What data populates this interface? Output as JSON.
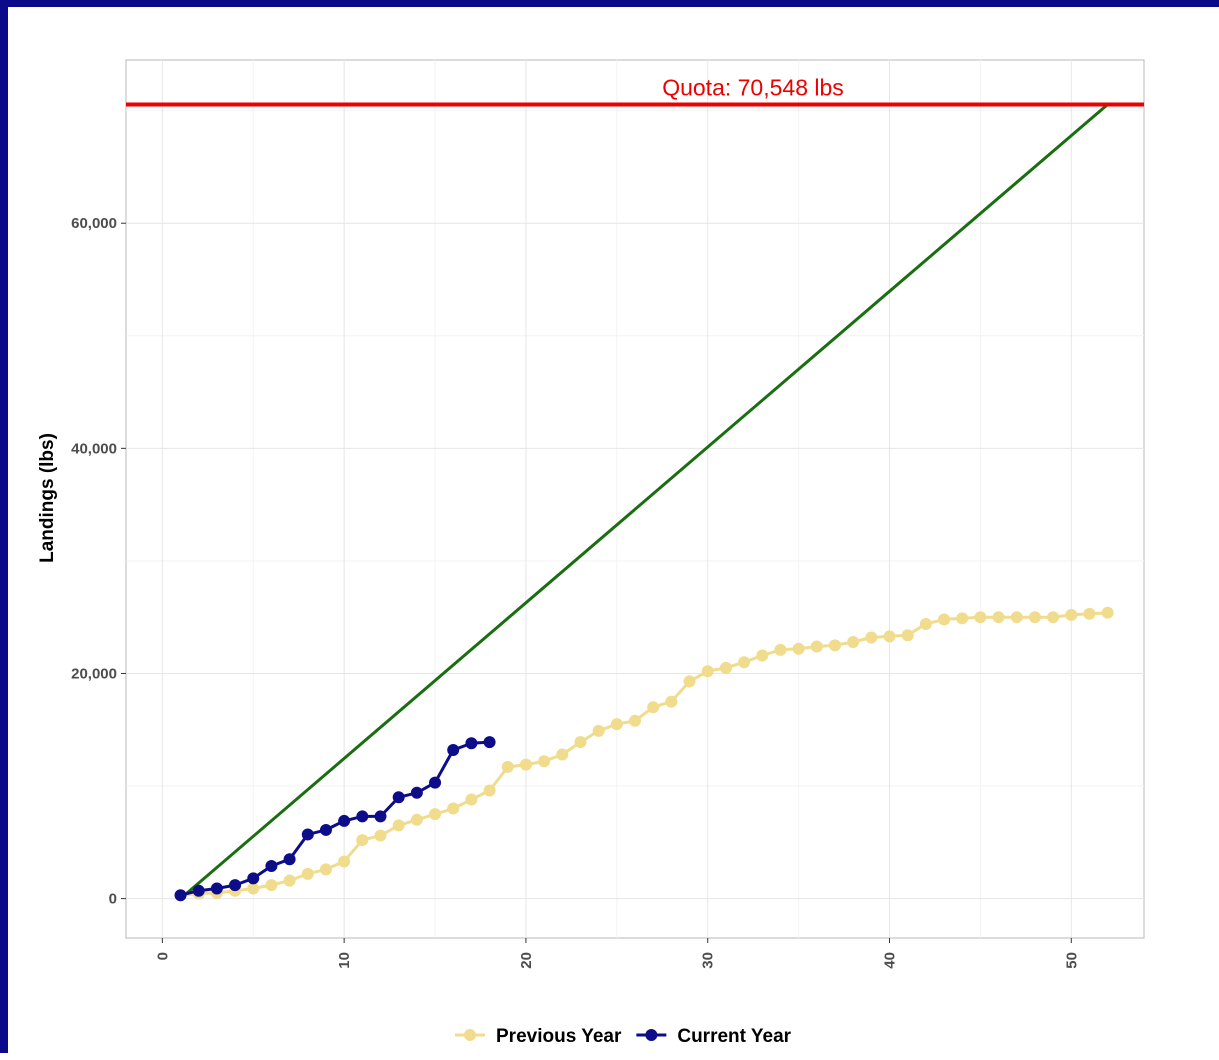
{
  "chart_data": {
    "type": "line",
    "title": "",
    "xlabel": "",
    "ylabel": "Landings (lbs)",
    "xlim": [
      -2,
      54
    ],
    "ylim": [
      -3500,
      74500
    ],
    "x_ticks": [
      0,
      10,
      20,
      30,
      40,
      50
    ],
    "x_tick_labels": [
      "0",
      "10",
      "20",
      "30",
      "40",
      "50"
    ],
    "y_ticks": [
      0,
      20000,
      40000,
      60000
    ],
    "y_tick_labels": [
      "0",
      "20,000",
      "40,000",
      "60,000"
    ],
    "grid": true,
    "legend_position": "bottom",
    "quota": {
      "value": 70548,
      "label": "Quota: 70,548 lbs",
      "color": "#ee0000"
    },
    "target_line": {
      "x": [
        1,
        52
      ],
      "y": [
        0,
        70548
      ],
      "color": "#1a6e12"
    },
    "series": [
      {
        "name": "Previous Year",
        "color": "#f0dc8c",
        "x": [
          1,
          2,
          3,
          4,
          5,
          6,
          7,
          8,
          9,
          10,
          11,
          12,
          13,
          14,
          15,
          16,
          17,
          18,
          19,
          20,
          21,
          22,
          23,
          24,
          25,
          26,
          27,
          28,
          29,
          30,
          31,
          32,
          33,
          34,
          35,
          36,
          37,
          38,
          39,
          40,
          41,
          42,
          43,
          44,
          45,
          46,
          47,
          48,
          49,
          50,
          51,
          52
        ],
        "values": [
          300,
          450,
          500,
          700,
          900,
          1200,
          1600,
          2200,
          2600,
          3300,
          5200,
          5600,
          6500,
          7000,
          7500,
          8000,
          8800,
          9600,
          11700,
          11900,
          12200,
          12800,
          13900,
          14900,
          15500,
          15800,
          17000,
          17500,
          19300,
          20200,
          20500,
          21000,
          21600,
          22100,
          22200,
          22400,
          22500,
          22800,
          23200,
          23300,
          23400,
          24400,
          24800,
          24900,
          25000,
          25000,
          25000,
          25000,
          25000,
          25200,
          25300,
          25400
        ]
      },
      {
        "name": "Current Year",
        "color": "#0d0d8a",
        "x": [
          1,
          2,
          3,
          4,
          5,
          6,
          7,
          8,
          9,
          10,
          11,
          12,
          13,
          14,
          15,
          16,
          17,
          18
        ],
        "values": [
          300,
          700,
          900,
          1200,
          1800,
          2900,
          3500,
          5700,
          6100,
          6900,
          7300,
          7300,
          9000,
          9400,
          10300,
          13200,
          13800,
          13900
        ]
      }
    ]
  }
}
